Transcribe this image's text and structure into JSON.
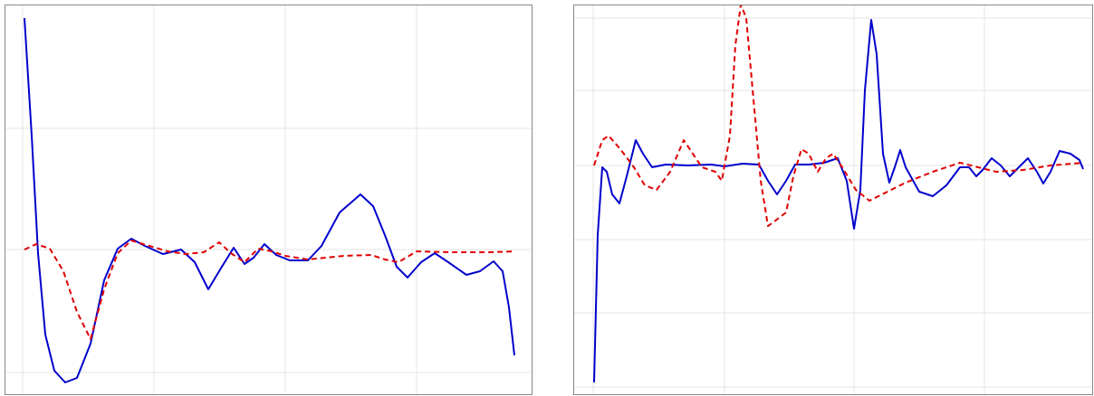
{
  "chart_data": [
    {
      "type": "line",
      "xlim": [
        -20,
        563
      ],
      "ylim": [
        -161,
        271
      ],
      "xticks": [
        0,
        145,
        290,
        435
      ],
      "yticks": [
        -136,
        0,
        134
      ],
      "grid": true,
      "series": [
        {
          "name": null,
          "color": "#0000cc",
          "dash": false,
          "x": [
            2,
            10,
            17,
            25,
            35,
            47,
            60,
            75,
            90,
            105,
            120,
            135,
            155,
            175,
            190,
            205,
            220,
            233,
            245,
            255,
            267,
            280,
            295,
            315,
            330,
            350,
            373,
            387,
            400,
            413,
            425,
            440,
            455,
            470,
            490,
            505,
            520,
            530,
            537,
            543
          ],
          "values": [
            256,
            126,
            -4,
            -94,
            -134,
            -147,
            -142,
            -104,
            -34,
            1,
            12,
            4,
            -5,
            0,
            -14,
            -44,
            -19,
            2,
            -16,
            -9,
            6,
            -6,
            -12,
            -12,
            4,
            41,
            61,
            48,
            16,
            -19,
            -31,
            -14,
            -4,
            -14,
            -28,
            -24,
            -13,
            -24,
            -64,
            -117
          ]
        },
        {
          "name": null,
          "color": "#e00000",
          "dash": true,
          "x": [
            2,
            15,
            30,
            45,
            60,
            75,
            90,
            105,
            120,
            140,
            160,
            180,
            200,
            217,
            230,
            245,
            260,
            275,
            290,
            315,
            355,
            385,
            400,
            415,
            435,
            475,
            515,
            543
          ],
          "values": [
            0,
            6,
            1,
            -24,
            -69,
            -99,
            -44,
            -4,
            10,
            4,
            -2,
            -5,
            -3,
            8,
            -4,
            -14,
            1,
            -2,
            -7,
            -11,
            -7,
            -6,
            -11,
            -14,
            -2,
            -3,
            -3,
            -2
          ]
        }
      ]
    },
    {
      "type": "line",
      "xlim": [
        -22,
        552
      ],
      "ylim": [
        -254,
        178
      ],
      "xticks": [
        0,
        145,
        288,
        432
      ],
      "yticks": [
        163,
        83,
        0,
        -82,
        -163,
        -245
      ],
      "grid": true,
      "series": [
        {
          "name": null,
          "color": "#0000cc",
          "dash": false,
          "x": [
            1,
            5,
            10,
            15,
            21,
            29,
            37,
            47,
            55,
            65,
            80,
            105,
            130,
            145,
            165,
            183,
            193,
            203,
            213,
            223,
            238,
            255,
            270,
            280,
            288,
            295,
            300,
            307,
            313,
            320,
            327,
            333,
            339,
            345,
            360,
            375,
            390,
            405,
            415,
            423,
            430,
            440,
            450,
            460,
            470,
            480,
            490,
            497,
            505,
            515,
            527,
            537,
            541
          ],
          "values": [
            -240,
            -77,
            -2,
            -7,
            -32,
            -42,
            -12,
            28,
            13,
            -2,
            1,
            0,
            1,
            -1,
            2,
            1,
            -17,
            -32,
            -17,
            1,
            1,
            3,
            8,
            -17,
            -70,
            -27,
            83,
            161,
            123,
            13,
            -19,
            -2,
            17,
            -2,
            -29,
            -34,
            -22,
            -2,
            -2,
            -12,
            -5,
            8,
            0,
            -12,
            -2,
            8,
            -7,
            -20,
            -7,
            16,
            13,
            6,
            -4
          ]
        },
        {
          "name": null,
          "color": "#e00000",
          "dash": true,
          "x": [
            1,
            10,
            17,
            30,
            45,
            57,
            70,
            85,
            100,
            110,
            120,
            135,
            142,
            151,
            157,
            163,
            169,
            177,
            185,
            193,
            200,
            213,
            221,
            230,
            238,
            248,
            257,
            265,
            275,
            290,
            305,
            325,
            345,
            375,
            405,
            425,
            445,
            475,
            505,
            541
          ],
          "values": [
            0,
            28,
            33,
            18,
            -2,
            -22,
            -27,
            -7,
            28,
            13,
            -2,
            -7,
            -17,
            33,
            133,
            178,
            163,
            73,
            -17,
            -67,
            -62,
            -52,
            -12,
            18,
            13,
            -7,
            8,
            13,
            -2,
            -27,
            -39,
            -29,
            -19,
            -7,
            3,
            -2,
            -7,
            -5,
            0,
            3
          ]
        }
      ]
    }
  ]
}
